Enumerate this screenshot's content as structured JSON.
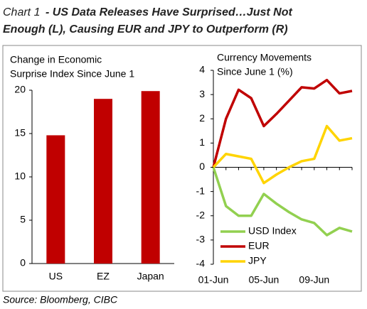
{
  "header": {
    "label": "Chart 1",
    "title": "- US Data Releases Have Surprised…Just Not",
    "title2": "Enough (L), Causing EUR and JPY to Outperform (R)"
  },
  "chart_data": [
    {
      "type": "bar",
      "title": [
        "Change in Economic",
        "Surprise Index Since June 1"
      ],
      "categories": [
        "US",
        "EZ",
        "Japan"
      ],
      "values": [
        14.8,
        19,
        19.9
      ],
      "color": "#c00000",
      "ylim": [
        0,
        20
      ],
      "yticks": [
        0,
        5,
        10,
        15,
        20
      ],
      "grid": false
    },
    {
      "type": "line",
      "title": [
        "Currency Movements",
        "Since June 1 (%)"
      ],
      "categories": [
        "01-Jun",
        null,
        null,
        null,
        "05-Jun",
        null,
        null,
        null,
        "09-Jun",
        null,
        null,
        null
      ],
      "series": [
        {
          "name": "USD Index",
          "color": "#92d050",
          "values": [
            0,
            -1.6,
            -2.0,
            -2.0,
            -1.1,
            -1.5,
            -1.85,
            -2.15,
            -2.3,
            -2.8,
            -2.5,
            -2.65
          ]
        },
        {
          "name": "EUR",
          "color": "#c00000",
          "values": [
            0,
            2.0,
            3.2,
            2.85,
            1.7,
            2.2,
            2.75,
            3.3,
            3.25,
            3.6,
            3.05,
            3.15
          ]
        },
        {
          "name": "JPY",
          "color": "#ffd400",
          "values": [
            0,
            0.55,
            0.45,
            0.35,
            -0.65,
            -0.3,
            0.0,
            0.25,
            0.35,
            1.7,
            1.1,
            1.2
          ]
        }
      ],
      "ylim": [
        -4,
        4
      ],
      "yticks": [
        -4,
        -3,
        -2,
        -1,
        0,
        1,
        2,
        3,
        4
      ],
      "grid": false,
      "legend": "lower right"
    }
  ],
  "source": "Source: Bloomberg, CIBC"
}
